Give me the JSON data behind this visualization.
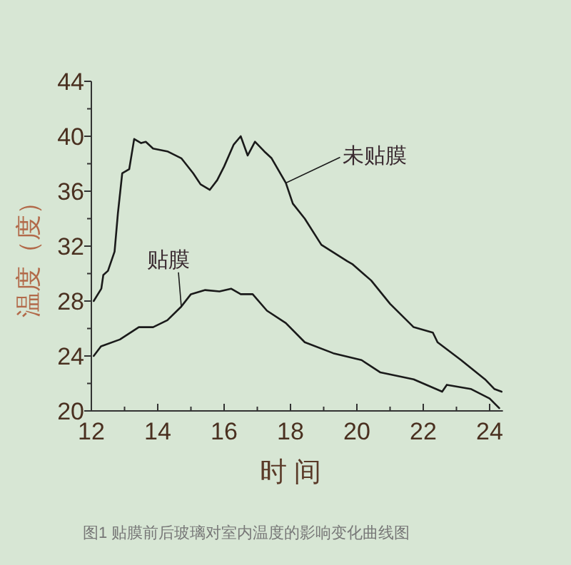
{
  "chart_data": {
    "type": "line",
    "xlabel": "时 间",
    "ylabel": "温度（度）",
    "xlim": [
      12,
      24.4
    ],
    "ylim": [
      20,
      44
    ],
    "xticks": [
      12,
      {
        "value": 13,
        "label": null
      },
      14,
      {
        "value": 15,
        "label": null
      },
      16,
      {
        "value": 17,
        "label": null
      },
      18,
      {
        "value": 19,
        "label": null
      },
      20,
      {
        "value": 21,
        "label": null
      },
      22,
      {
        "value": 23,
        "label": null
      },
      24
    ],
    "yticks": [
      20,
      {
        "value": 22,
        "label": null
      },
      24,
      {
        "value": 26,
        "label": null
      },
      28,
      {
        "value": 30,
        "label": null
      },
      32,
      {
        "value": 34,
        "label": null
      },
      36,
      {
        "value": 38,
        "label": null
      },
      40,
      {
        "value": 42,
        "label": null
      },
      44
    ],
    "grid": false,
    "legend": "top right",
    "marker": "none",
    "line_style": "solid",
    "series": [
      {
        "name": "未贴膜",
        "color": "#1a1a1a",
        "x": [
          12.07,
          12.3,
          12.36,
          12.5,
          12.7,
          12.8,
          12.93,
          13.14,
          13.29,
          13.5,
          13.64,
          13.86,
          14.29,
          14.71,
          15.07,
          15.29,
          15.57,
          15.79,
          16,
          16.29,
          16.5,
          16.71,
          16.93,
          17.21,
          17.43,
          17.86,
          18.07,
          18.43,
          18.93,
          19.71,
          19.86,
          20.43,
          21,
          21.71,
          22.29,
          22.43,
          23.14,
          23.86,
          24.14,
          24.36
        ],
        "values": [
          28,
          28.9,
          29.9,
          30.2,
          31.6,
          34.4,
          37.3,
          37.6,
          39.8,
          39.5,
          39.6,
          39.1,
          38.9,
          38.4,
          37.3,
          36.5,
          36.1,
          36.8,
          37.8,
          39.4,
          40,
          38.6,
          39.6,
          38.9,
          38.4,
          36.6,
          35.1,
          34,
          32.1,
          30.9,
          30.7,
          29.5,
          27.8,
          26.1,
          25.7,
          25,
          23.7,
          22.3,
          21.6,
          21.4
        ]
      },
      {
        "name": "贴膜",
        "color": "#1a1a1a",
        "x": [
          12.07,
          12.29,
          12.86,
          13.43,
          13.86,
          14.29,
          14.71,
          15,
          15.43,
          15.86,
          16.21,
          16.5,
          16.86,
          17.29,
          17.86,
          18.43,
          19.29,
          20.14,
          20.71,
          21.71,
          22.57,
          22.71,
          23.43,
          24,
          24.29
        ],
        "values": [
          24,
          24.7,
          25.2,
          26.1,
          26.1,
          26.6,
          27.6,
          28.5,
          28.8,
          28.7,
          28.9,
          28.5,
          28.5,
          27.3,
          26.4,
          25,
          24.2,
          23.7,
          22.8,
          22.3,
          21.4,
          21.9,
          21.6,
          20.9,
          20.2
        ]
      }
    ],
    "annotations": [
      "图1 贴膜前后玻璃对室内温度的影响变化曲线图"
    ]
  }
}
